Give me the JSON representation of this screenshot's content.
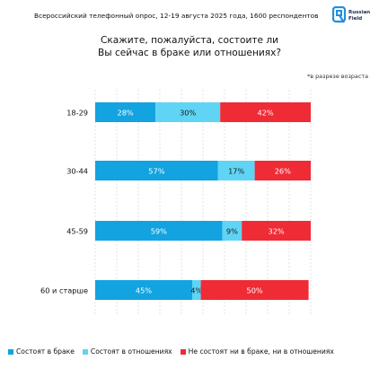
{
  "header": {
    "survey_note": "Всероссийский телефонный опрос, 12-19 августа 2025 года, 1600 респондентов",
    "logo_text_line1": "Russian",
    "logo_text_line2": "Field"
  },
  "colors": {
    "married": "#12a3e0",
    "relationship": "#5fd4f5",
    "single": "#ef2b36",
    "grid": "#d0d0d0"
  },
  "chart_data": {
    "type": "bar",
    "orientation": "horizontal",
    "stacked": true,
    "title_line1": "Скажите, пожалуйста, состоите ли",
    "title_line2": "Вы сейчас в браке или отношениях?",
    "annotation": "*в разрезе возраста",
    "categories": [
      "18-29",
      "30-44",
      "45-59",
      "60 и старше"
    ],
    "series": [
      {
        "name": "Состоят в браке",
        "values": [
          28,
          57,
          59,
          45
        ],
        "labels": [
          "28%",
          "57%",
          "59%",
          "45%"
        ]
      },
      {
        "name": "Состоят в отношениях",
        "values": [
          30,
          17,
          9,
          4
        ],
        "labels": [
          "30%",
          "17%",
          "9%",
          "4%"
        ]
      },
      {
        "name": "Не состоят ни в браке, ни в отношениях",
        "values": [
          42,
          26,
          32,
          50
        ],
        "labels": [
          "42%",
          "26%",
          "32%",
          "50%"
        ]
      }
    ],
    "xlim": [
      0,
      100
    ],
    "grid": true,
    "legend_position": "bottom"
  }
}
